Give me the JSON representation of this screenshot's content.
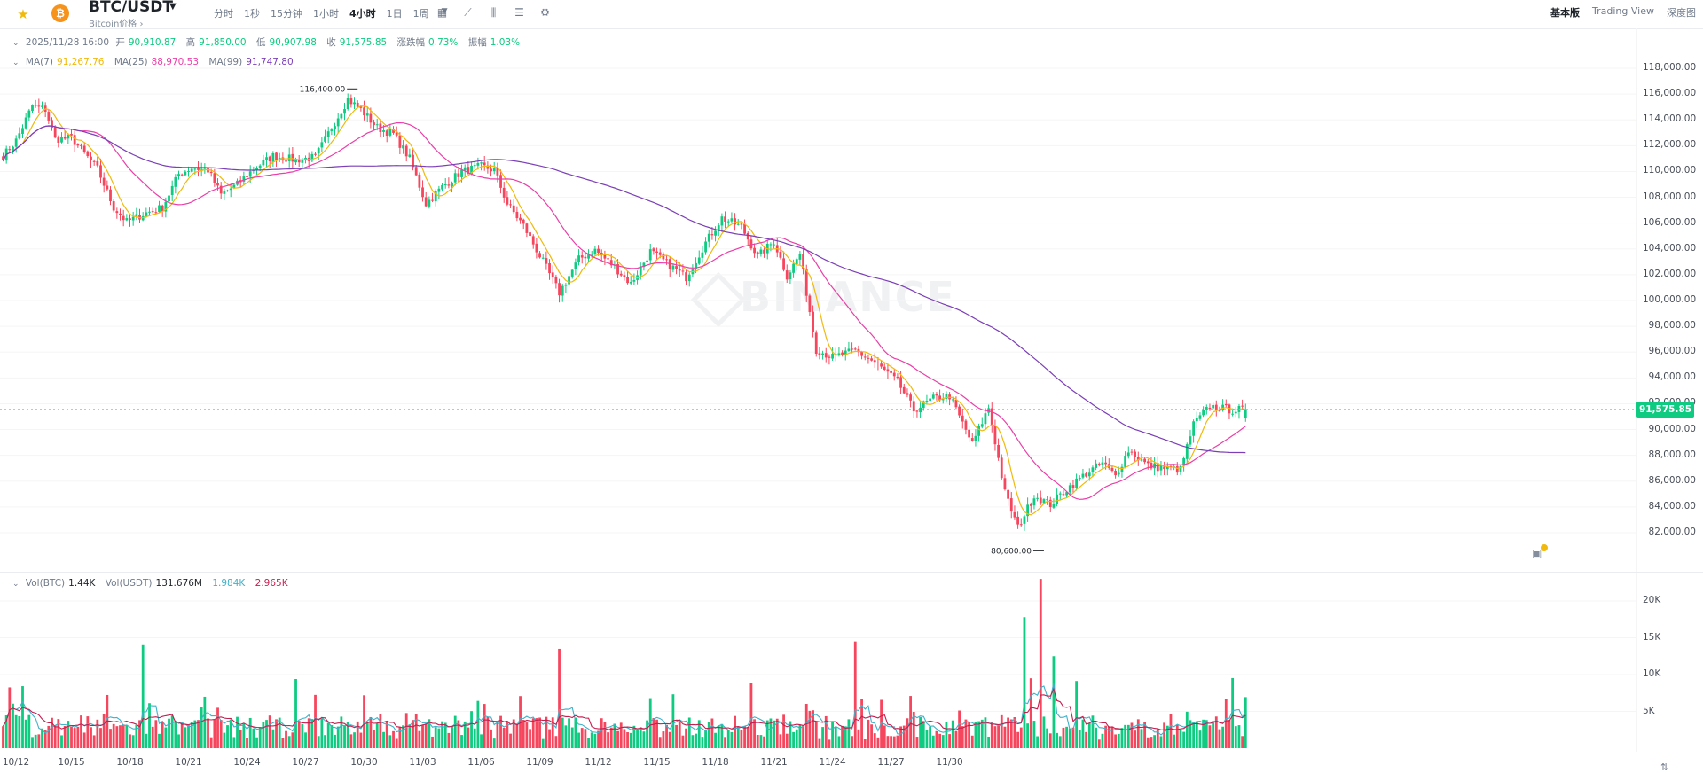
{
  "header": {
    "pair": "BTC/USDT",
    "subtitle": "Bitcoin价格",
    "coin_icon": "bitcoin-icon",
    "intervals": [
      "分时",
      "1秒",
      "15分钟",
      "1小时",
      "4小时",
      "1日",
      "1周"
    ],
    "active_interval": "4小时",
    "tool_icons": [
      "calendar-icon",
      "line-tool-icon",
      "candle-type-icon",
      "indicator-icon",
      "settings-icon"
    ],
    "views": [
      "基本版",
      "Trading View",
      "深度图"
    ],
    "active_view": "基本版"
  },
  "ohlc": {
    "date": "2025/11/28 16:00",
    "open_label": "开",
    "open": "90,910.87",
    "high_label": "高",
    "high": "91,850.00",
    "low_label": "低",
    "low": "90,907.98",
    "close_label": "收",
    "close": "91,575.85",
    "change_label": "涨跌幅",
    "change": "0.73%",
    "amplitude_label": "振幅",
    "amplitude": "1.03%"
  },
  "ma": {
    "ma7_label": "MA(7)",
    "ma7": "91,267.76",
    "ma25_label": "MA(25)",
    "ma25": "88,970.53",
    "ma99_label": "MA(99)",
    "ma99": "91,747.80"
  },
  "vol": {
    "btc_label": "Vol(BTC)",
    "btc": "1.44K",
    "usdt_label": "Vol(USDT)",
    "usdt": "131.676M",
    "ma5": "1.984K",
    "ma10": "2.965K"
  },
  "watermark": "BINANCE",
  "colors": {
    "up": "#0ecb81",
    "down": "#f6465d",
    "ma7": "#f0b90b",
    "ma25": "#ea3fa8",
    "ma99": "#7b3fb6",
    "vol_ma5": "#3fb1c9",
    "vol_ma10": "#c21f4f"
  },
  "chart_data": {
    "type": "candlestick",
    "interval": "4h",
    "x_tick_labels": [
      "10/12",
      "10/15",
      "10/18",
      "10/21",
      "10/24",
      "10/27",
      "10/30",
      "11/03",
      "11/06",
      "11/09",
      "11/12",
      "11/15",
      "11/18",
      "11/21",
      "11/24",
      "11/27",
      "11/30"
    ],
    "price_axis": {
      "ylim": [
        80000,
        119500
      ],
      "ticks": [
        "82,000.00",
        "84,000.00",
        "86,000.00",
        "88,000.00",
        "90,000.00",
        "92,000.00",
        "94,000.00",
        "96,000.00",
        "98,000.00",
        "100,000.00",
        "102,000.00",
        "104,000.00",
        "106,000.00",
        "108,000.00",
        "110,000.00",
        "112,000.00",
        "114,000.00",
        "116,000.00",
        "118,000.00"
      ]
    },
    "volume_axis": {
      "ylim": [
        0,
        24500
      ],
      "ticks": [
        "5K",
        "10K",
        "15K",
        "20K"
      ]
    },
    "annotations": {
      "high": "116,400.00",
      "low": "80,600.00"
    },
    "last_price": "91,575.85",
    "close_keypoints": [
      [
        0,
        111200
      ],
      [
        4,
        112400
      ],
      [
        9,
        115100
      ],
      [
        13,
        114800
      ],
      [
        16,
        112500
      ],
      [
        21,
        112600
      ],
      [
        25,
        111400
      ],
      [
        29,
        110200
      ],
      [
        34,
        107200
      ],
      [
        38,
        106100
      ],
      [
        44,
        106800
      ],
      [
        49,
        107200
      ],
      [
        54,
        109800
      ],
      [
        58,
        110300
      ],
      [
        63,
        110100
      ],
      [
        67,
        108200
      ],
      [
        72,
        109000
      ],
      [
        77,
        110200
      ],
      [
        83,
        111200
      ],
      [
        90,
        110900
      ],
      [
        96,
        111100
      ],
      [
        101,
        113400
      ],
      [
        106,
        115600
      ],
      [
        110,
        114800
      ],
      [
        115,
        113400
      ],
      [
        120,
        112900
      ],
      [
        125,
        111000
      ],
      [
        130,
        107500
      ],
      [
        135,
        108800
      ],
      [
        141,
        110000
      ],
      [
        147,
        110400
      ],
      [
        151,
        110100
      ],
      [
        155,
        107500
      ],
      [
        160,
        105800
      ],
      [
        166,
        103000
      ],
      [
        171,
        100600
      ],
      [
        177,
        103200
      ],
      [
        182,
        103900
      ],
      [
        188,
        102600
      ],
      [
        193,
        101300
      ],
      [
        199,
        103800
      ],
      [
        204,
        102900
      ],
      [
        210,
        101800
      ],
      [
        216,
        104500
      ],
      [
        221,
        106400
      ],
      [
        227,
        105700
      ],
      [
        232,
        103400
      ],
      [
        237,
        104600
      ],
      [
        241,
        101900
      ],
      [
        245,
        103600
      ],
      [
        250,
        96200
      ],
      [
        255,
        95600
      ],
      [
        262,
        96100
      ],
      [
        268,
        95200
      ],
      [
        275,
        93700
      ],
      [
        280,
        91500
      ],
      [
        286,
        92400
      ],
      [
        291,
        92600
      ],
      [
        298,
        88900
      ],
      [
        303,
        91700
      ],
      [
        308,
        85100
      ],
      [
        312,
        82400
      ],
      [
        317,
        84900
      ],
      [
        322,
        84200
      ],
      [
        327,
        85400
      ],
      [
        333,
        86600
      ],
      [
        338,
        87400
      ],
      [
        342,
        86400
      ],
      [
        346,
        88400
      ],
      [
        352,
        87200
      ],
      [
        357,
        87000
      ],
      [
        362,
        86900
      ],
      [
        366,
        90400
      ],
      [
        371,
        91800
      ],
      [
        378,
        91500
      ],
      [
        382,
        91576
      ]
    ],
    "candle_count": 383,
    "volume_note": "volume in BTC per 4h candle, with MA(5) and MA(10)"
  }
}
